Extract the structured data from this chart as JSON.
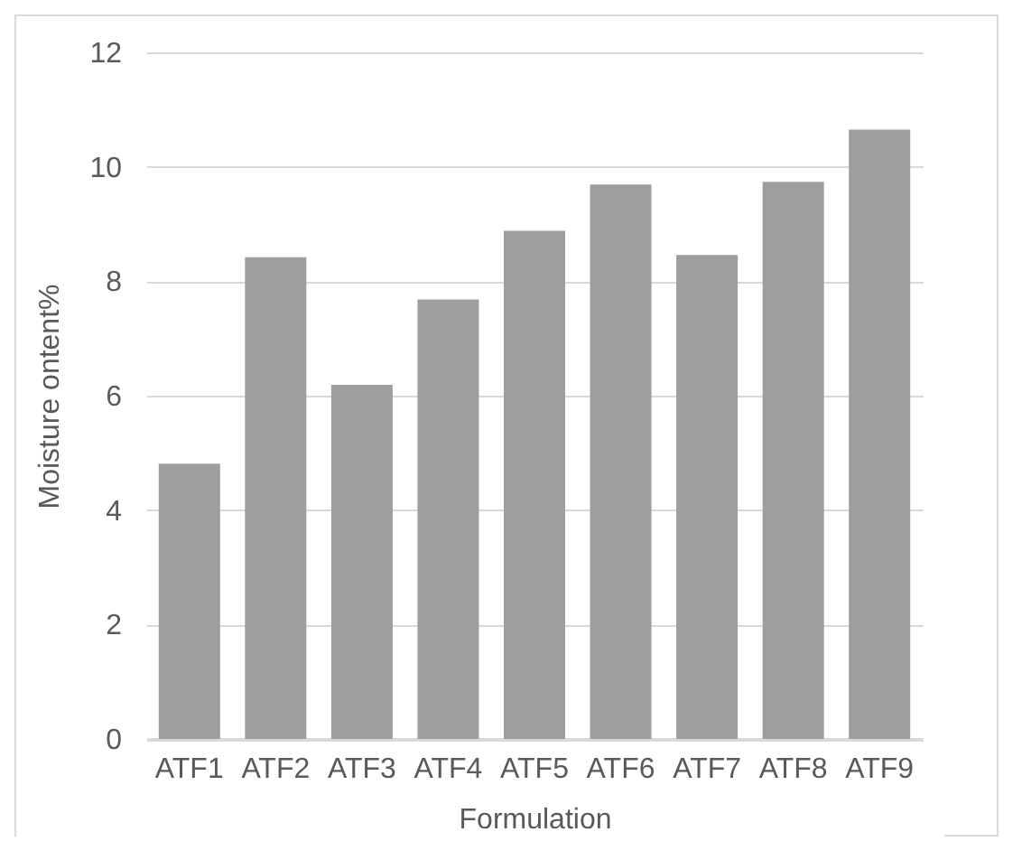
{
  "chart_data": {
    "type": "bar",
    "xlabel": "Formulation",
    "ylabel": "Moisture ontent%",
    "categories": [
      "ATF1",
      "ATF2",
      "ATF3",
      "ATF4",
      "ATF5",
      "ATF6",
      "ATF7",
      "ATF8",
      "ATF9"
    ],
    "values": [
      4.81,
      8.42,
      6.19,
      7.68,
      8.88,
      9.69,
      8.46,
      9.74,
      10.65
    ],
    "color": "#9e9e9e",
    "ylim": [
      0,
      12
    ],
    "yticks": [
      0,
      2,
      4,
      6,
      8,
      10,
      12
    ],
    "grid": "y"
  }
}
